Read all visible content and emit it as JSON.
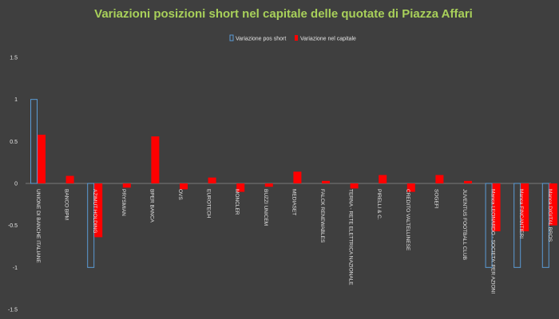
{
  "chart_data": {
    "type": "bar",
    "title": "Variazioni posizioni short nel capitale delle quotate di Piazza Affari",
    "xlabel": "",
    "ylabel": "",
    "ylim": [
      -1.5,
      1.5
    ],
    "yticks": [
      "1.5",
      "1",
      "0.5",
      "0",
      "-0.5",
      "-1",
      "-1.5"
    ],
    "grid": false,
    "legend_position": "top",
    "categories": [
      "UNIONE DI BANCHE ITALIANE",
      "BANCO BPM",
      "AZIMUT HOLDING",
      "PRYSMIAN",
      "BPER BANCA",
      "OVS",
      "EUROTECH",
      "MONCLER",
      "BUZZI UNICEM",
      "MEDIASET",
      "FALCK RENEWABLES",
      "TERNA - RETE ELETTRICA NAZIONALE",
      "PIRELLI & C.",
      "CREDITO VALTELLINESE",
      "SOGEFI",
      "JUVENTUS FOOTBALL CLUB",
      "Manca LEONARDO - SOCIETA' PER AZIONI",
      "Manca FINCANTIERI",
      "Manca DIGITAL BROS"
    ],
    "series": [
      {
        "name": "Variazione pos short",
        "color": "#5b9bd5",
        "style": "outline",
        "values": [
          1.0,
          0,
          -1.0,
          0,
          0,
          0,
          0,
          0,
          0,
          0,
          0,
          0,
          0,
          0,
          0,
          0,
          -1.0,
          -1.0,
          -1.0
        ]
      },
      {
        "name": "Variazione nel capitale",
        "color": "#ff0000",
        "style": "filled",
        "values": [
          0.58,
          0.09,
          -0.64,
          -0.05,
          0.56,
          -0.07,
          0.07,
          -0.1,
          -0.04,
          0.14,
          0.03,
          -0.06,
          0.1,
          -0.1,
          0.1,
          0.03,
          -0.57,
          -0.57,
          -0.5
        ]
      }
    ]
  }
}
